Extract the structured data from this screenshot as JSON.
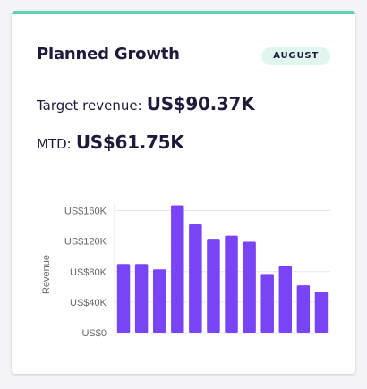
{
  "colors": {
    "accent_bar": "#5dd3b4",
    "badge_bg": "#e2f6f0",
    "bar_fill": "#7844f5",
    "grid": "#e6e6e6",
    "text_dark": "#1e1b3a",
    "axis_text": "#666666"
  },
  "card": {
    "title": "Planned Growth",
    "badge": "AUGUST",
    "target_label": "Target revenue:",
    "target_value": "US$90.37K",
    "mtd_label": "MTD:",
    "mtd_value": "US$61.75K"
  },
  "chart_data": {
    "type": "bar",
    "ylabel": "Revenue",
    "xlabel": "",
    "ylim": [
      0,
      170000
    ],
    "yticks": [
      0,
      40000,
      80000,
      120000,
      160000
    ],
    "ytick_labels": [
      "US$0",
      "US$40K",
      "US$80K",
      "US$120K",
      "US$160K"
    ],
    "grid": true,
    "series": [
      {
        "values": [
          90000,
          90000,
          83000,
          167000,
          142000,
          123000,
          127000,
          119000,
          77000,
          87000,
          62000,
          54000
        ]
      }
    ]
  }
}
